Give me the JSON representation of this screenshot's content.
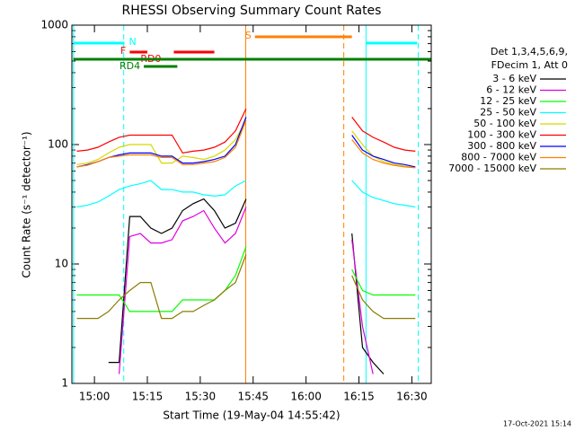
{
  "chart_data": {
    "type": "line",
    "title": "RHESSI Observing Summary Count Rates",
    "x_label": "Start Time (19-May-04 14:55:42)",
    "y_label": "Count Rate (s⁻¹ detector⁻¹)",
    "footer": "17-Oct-2021 15:14",
    "legend_header": [
      "Det 1,3,4,5,6,9,",
      "FDecim 1, Att 0"
    ],
    "log_y": true,
    "xlim": [
      893.6,
      995.5
    ],
    "ylim": [
      1,
      1000
    ],
    "xticks": [
      {
        "value": 900,
        "label": "15:00"
      },
      {
        "value": 915,
        "label": "15:15"
      },
      {
        "value": 930,
        "label": "15:30"
      },
      {
        "value": 945,
        "label": "15:45"
      },
      {
        "value": 960,
        "label": "16:00"
      },
      {
        "value": 975,
        "label": "16:15"
      },
      {
        "value": 990,
        "label": "16:30"
      }
    ],
    "yticks": [
      1,
      10,
      100,
      1000
    ],
    "x": [
      895,
      898,
      901,
      904,
      907,
      910,
      913,
      916,
      919,
      922,
      925,
      928,
      931,
      934,
      937,
      940,
      943,
      946,
      949,
      952,
      955,
      958,
      961,
      964,
      967,
      970,
      973,
      976,
      979,
      982,
      985,
      988,
      991
    ],
    "series": [
      {
        "name": "3 - 6 keV",
        "color": "#000000",
        "values": [
          null,
          null,
          null,
          1.5,
          1.5,
          25,
          25,
          20,
          18,
          20,
          28,
          32,
          35,
          28,
          20,
          22,
          35,
          null,
          null,
          null,
          null,
          null,
          null,
          null,
          null,
          null,
          18,
          2,
          1.5,
          1.2,
          null,
          null,
          null
        ]
      },
      {
        "name": "6 - 12 keV",
        "color": "#e000e0",
        "values": [
          null,
          null,
          null,
          null,
          1.2,
          17,
          18,
          15,
          15,
          16,
          23,
          25,
          28,
          20,
          15,
          18,
          30,
          null,
          null,
          null,
          null,
          null,
          null,
          null,
          null,
          null,
          16,
          3,
          1.2,
          null,
          null,
          null,
          null
        ]
      },
      {
        "name": "12 - 25 keV",
        "color": "#00ff00",
        "values": [
          5.5,
          5.5,
          5.5,
          5.5,
          5.5,
          4,
          4,
          4,
          4,
          4,
          5,
          5,
          5,
          5,
          6,
          8,
          14,
          null,
          null,
          null,
          null,
          null,
          null,
          null,
          null,
          null,
          9,
          6,
          5.5,
          5.5,
          5.5,
          5.5,
          5.5
        ]
      },
      {
        "name": "25 - 50 keV",
        "color": "#00ffff",
        "values": [
          30,
          31,
          33,
          37,
          42,
          45,
          47,
          50,
          42,
          42,
          40,
          40,
          38,
          37,
          38,
          45,
          50,
          null,
          null,
          null,
          null,
          null,
          null,
          null,
          null,
          null,
          50,
          40,
          36,
          34,
          32,
          31,
          30
        ]
      },
      {
        "name": "50 - 100 keV",
        "color": "#d8d800",
        "values": [
          68,
          70,
          75,
          85,
          95,
          100,
          100,
          100,
          70,
          70,
          80,
          78,
          75,
          80,
          90,
          110,
          160,
          null,
          null,
          null,
          null,
          null,
          null,
          null,
          null,
          null,
          130,
          100,
          80,
          72,
          68,
          66,
          64
        ]
      },
      {
        "name": "100 - 300 keV",
        "color": "#ff0000",
        "values": [
          88,
          90,
          95,
          105,
          115,
          120,
          120,
          120,
          120,
          120,
          85,
          88,
          90,
          95,
          105,
          130,
          200,
          null,
          null,
          null,
          null,
          null,
          null,
          null,
          null,
          null,
          170,
          130,
          115,
          105,
          95,
          90,
          88
        ]
      },
      {
        "name": "300 - 800 keV",
        "color": "#0000ff",
        "values": [
          65,
          68,
          72,
          78,
          82,
          85,
          85,
          85,
          80,
          80,
          70,
          70,
          72,
          75,
          80,
          100,
          170,
          null,
          null,
          null,
          null,
          null,
          null,
          null,
          null,
          null,
          120,
          90,
          80,
          75,
          70,
          68,
          65
        ]
      },
      {
        "name": "800 - 7000 keV",
        "color": "#ff8000",
        "values": [
          65,
          67,
          72,
          78,
          80,
          82,
          82,
          82,
          78,
          78,
          68,
          68,
          70,
          72,
          78,
          95,
          160,
          null,
          null,
          null,
          null,
          null,
          null,
          null,
          null,
          null,
          110,
          85,
          75,
          70,
          67,
          65,
          64
        ]
      },
      {
        "name": "7000 - 15000 keV",
        "color": "#8b7d00",
        "values": [
          3.5,
          3.5,
          3.5,
          4,
          5,
          6,
          7,
          7,
          3.5,
          3.5,
          4,
          4,
          4.5,
          5,
          6,
          7,
          12,
          null,
          null,
          null,
          null,
          null,
          null,
          null,
          null,
          null,
          8,
          5,
          4,
          3.5,
          3.5,
          3.5,
          3.5
        ]
      }
    ],
    "flags": [
      {
        "label": "N",
        "color": "#00ffff",
        "segments": [
          [
            894,
            908.5
          ],
          [
            977,
            991.5
          ]
        ]
      },
      {
        "label": "F",
        "color": "#ff0000",
        "segments": [
          [
            910,
            915
          ]
        ]
      },
      {
        "label": "RD0",
        "color": "#ff0000",
        "segments": [
          [
            922.5,
            934
          ]
        ]
      },
      {
        "label": "RD4",
        "color": "#008000",
        "segments": [
          [
            914,
            923.5
          ]
        ]
      },
      {
        "label": "S",
        "color": "#ff8000",
        "segments": [
          [
            945.5,
            973
          ]
        ]
      },
      {
        "color": "#008000",
        "segments": [
          [
            894,
            995.5
          ]
        ]
      }
    ],
    "vlines": [
      {
        "x": 894.1,
        "color": "#00ffff",
        "dashed": false
      },
      {
        "x": 908.3,
        "color": "#00ffff",
        "dashed": true
      },
      {
        "x": 942.9,
        "color": "#ff8000",
        "dashed": false
      },
      {
        "x": 970.7,
        "color": "#ff8000",
        "dashed": true
      },
      {
        "x": 977,
        "color": "#00ffff",
        "dashed": false
      },
      {
        "x": 991.8,
        "color": "#00ffff",
        "dashed": true
      }
    ]
  }
}
